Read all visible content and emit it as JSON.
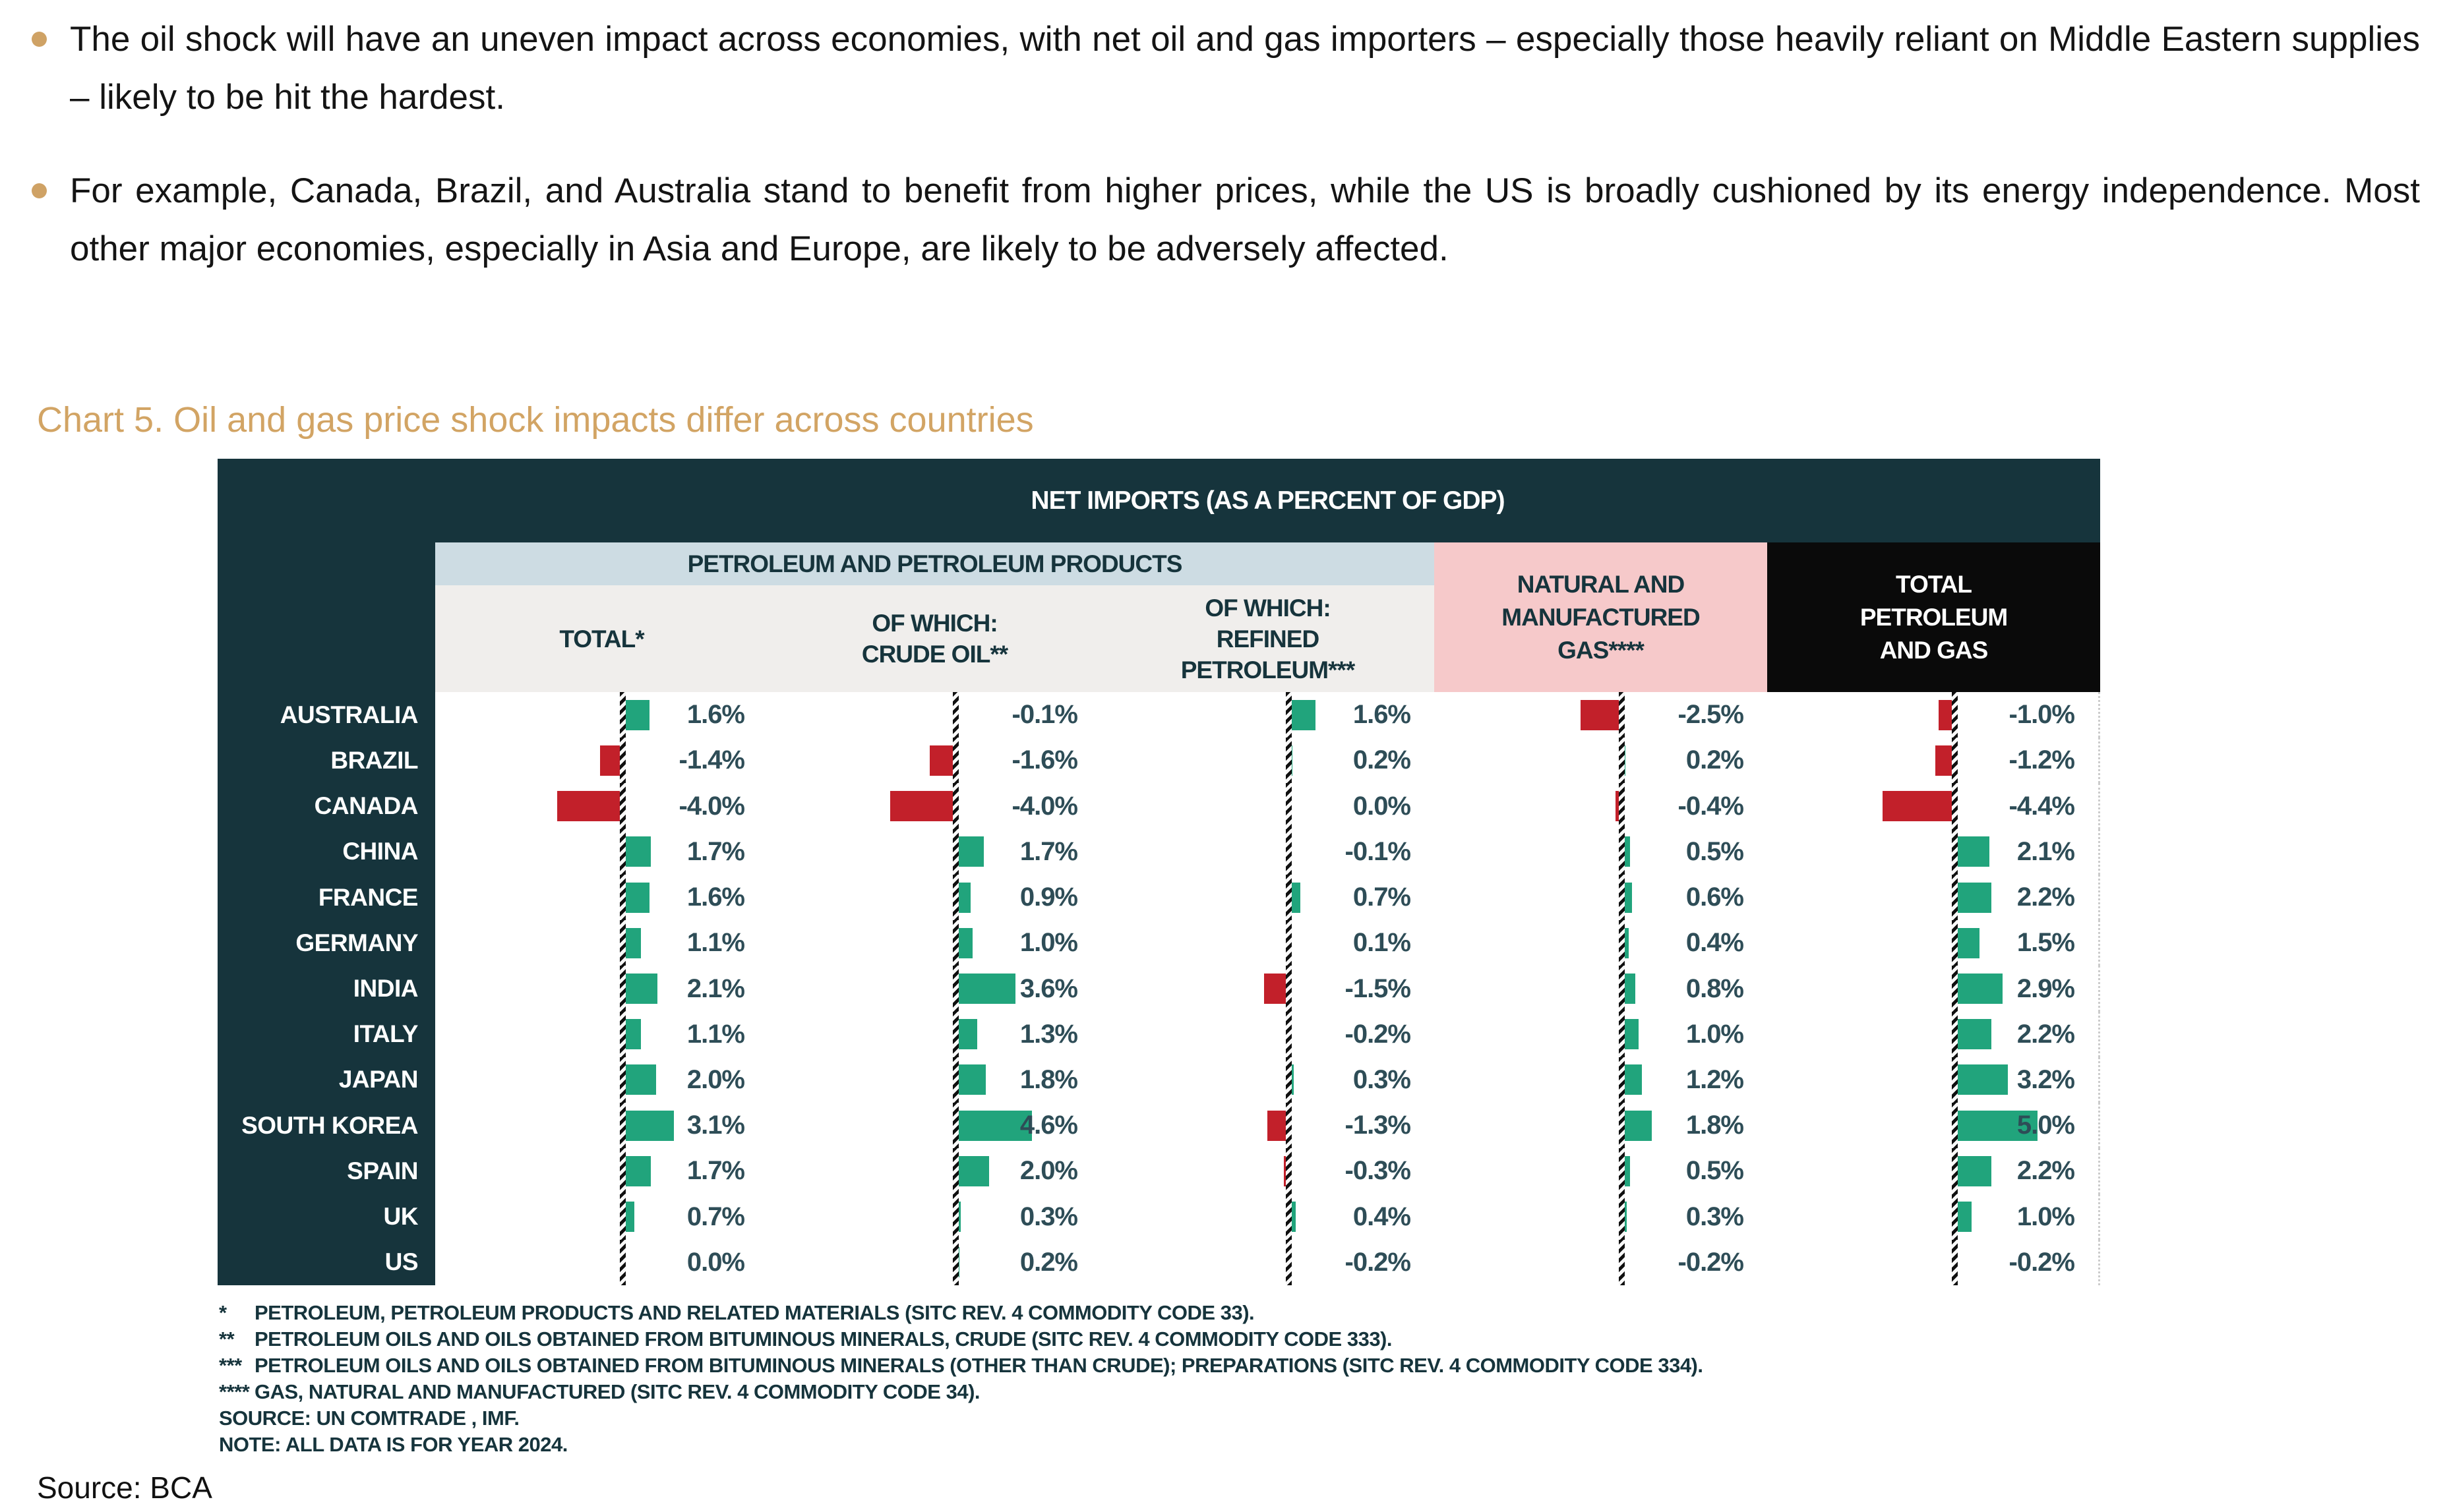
{
  "bullets": [
    {
      "text": "The oil shock will have an uneven impact across economies, with net oil and gas importers – especially those heavily reliant on Middle Eastern supplies – likely to be hit the hardest."
    },
    {
      "text": "For example, Canada, Brazil, and Australia stand to benefit from higher prices, while the US is broadly cushioned by its energy independence. Most other major economies, especially in Asia and Europe, are likely to be adversely affected."
    }
  ],
  "chart": {
    "title": "Chart 5. Oil and gas price shock impacts differ across countries",
    "table_header": "NET IMPORTS (AS A PERCENT OF GDP)",
    "group_header": "PETROLEUM AND PETROLEUM PRODUCTS",
    "columns_display": [
      "TOTAL*",
      "OF WHICH:\nCRUDE OIL**",
      "OF WHICH:\nREFINED\nPETROLEUM***",
      "NATURAL AND\nMANUFACTURED\nGAS****",
      "TOTAL\nPETROLEUM\nAND GAS"
    ]
  },
  "chart_data": {
    "type": "bar",
    "orientation": "horizontal",
    "unit": "percent of GDP",
    "title": "NET IMPORTS (AS A PERCENT OF GDP)",
    "zero_axis": true,
    "xlim": [
      -5,
      5
    ],
    "categories": [
      "AUSTRALIA",
      "BRAZIL",
      "CANADA",
      "CHINA",
      "FRANCE",
      "GERMANY",
      "INDIA",
      "ITALY",
      "JAPAN",
      "SOUTH KOREA",
      "SPAIN",
      "UK",
      "US"
    ],
    "series": [
      {
        "name": "TOTAL*",
        "values": [
          1.6,
          -1.4,
          -4.0,
          1.7,
          1.6,
          1.1,
          2.1,
          1.1,
          2.0,
          3.1,
          1.7,
          0.7,
          0.0
        ]
      },
      {
        "name": "OF WHICH: CRUDE OIL**",
        "values": [
          -0.1,
          -1.6,
          -4.0,
          1.7,
          0.9,
          1.0,
          3.6,
          1.3,
          1.8,
          4.6,
          2.0,
          0.3,
          0.2
        ]
      },
      {
        "name": "OF WHICH: REFINED PETROLEUM***",
        "values": [
          1.6,
          0.2,
          0.0,
          -0.1,
          0.7,
          0.1,
          -1.5,
          -0.2,
          0.3,
          -1.3,
          -0.3,
          0.4,
          -0.2
        ]
      },
      {
        "name": "NATURAL AND MANUFACTURED GAS****",
        "values": [
          -2.5,
          0.2,
          -0.4,
          0.5,
          0.6,
          0.4,
          0.8,
          1.0,
          1.2,
          1.8,
          0.5,
          0.3,
          -0.2
        ]
      },
      {
        "name": "TOTAL PETROLEUM AND GAS",
        "values": [
          -1.0,
          -1.2,
          -4.4,
          2.1,
          2.2,
          1.5,
          2.9,
          2.2,
          3.2,
          5.0,
          2.2,
          1.0,
          -0.2
        ]
      }
    ],
    "positive_color": "#21a47c",
    "negative_color": "#c2202a"
  },
  "footnotes": [
    {
      "marker": "*",
      "text": "PETROLEUM, PETROLEUM PRODUCTS AND RELATED MATERIALS (SITC REV. 4 COMMODITY CODE 33)."
    },
    {
      "marker": "**",
      "text": "PETROLEUM OILS AND OILS OBTAINED FROM BITUMINOUS MINERALS, CRUDE (SITC REV. 4 COMMODITY CODE 333)."
    },
    {
      "marker": "***",
      "text": "PETROLEUM OILS AND OILS OBTAINED FROM BITUMINOUS MINERALS (OTHER THAN CRUDE); PREPARATIONS (SITC REV. 4 COMMODITY CODE 334)."
    },
    {
      "marker": "****",
      "text": "GAS, NATURAL AND MANUFACTURED (SITC REV. 4 COMMODITY CODE 34)."
    },
    {
      "marker": "",
      "text": "SOURCE: UN COMTRADE , IMF."
    },
    {
      "marker": "",
      "text": "NOTE: ALL DATA IS FOR YEAR 2024."
    }
  ],
  "source": "Source: BCA",
  "colors": {
    "teal_header": "#16343c",
    "band_blue": "#cddce3",
    "band_gray": "#f0eeec",
    "pink_header": "#f6c9ca",
    "black_header": "#0a0a0a",
    "bar_green": "#21a47c",
    "bar_red": "#c2202a",
    "value_text": "#2e4d57",
    "title_gold": "#d2a464",
    "bullet_gold": "#cfa265"
  }
}
